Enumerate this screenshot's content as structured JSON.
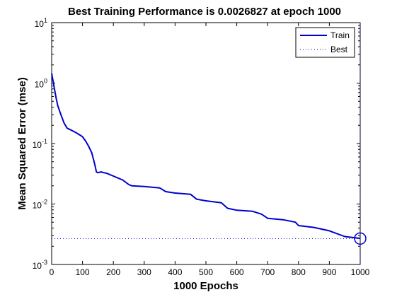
{
  "chart_data": {
    "type": "line",
    "title": "Best Training Performance is 0.0026827 at epoch 1000",
    "xlabel": "1000 Epochs",
    "ylabel": "Mean Squared Error  (mse)",
    "xlim": [
      0,
      1000
    ],
    "ylim": [
      0.001,
      10
    ],
    "yscale": "log",
    "grid": false,
    "legend_position": "top-right",
    "x_ticks": [
      0,
      100,
      200,
      300,
      400,
      500,
      600,
      700,
      800,
      900,
      1000
    ],
    "y_ticks": [
      {
        "value": 10,
        "base": "10",
        "exp": "1"
      },
      {
        "value": 1,
        "base": "10",
        "exp": "0"
      },
      {
        "value": 0.1,
        "base": "10",
        "exp": "-1"
      },
      {
        "value": 0.01,
        "base": "10",
        "exp": "-2"
      },
      {
        "value": 0.001,
        "base": "10",
        "exp": "-3"
      }
    ],
    "series": [
      {
        "name": "Train",
        "color": "#0000cc",
        "style": "solid",
        "x": [
          0,
          5,
          10,
          15,
          20,
          30,
          40,
          50,
          60,
          70,
          80,
          90,
          100,
          110,
          120,
          130,
          140,
          145,
          150,
          160,
          180,
          200,
          230,
          250,
          260,
          300,
          350,
          370,
          400,
          450,
          470,
          500,
          550,
          570,
          600,
          650,
          680,
          700,
          750,
          790,
          800,
          850,
          900,
          950,
          1000
        ],
        "y": [
          1.45,
          1.05,
          0.75,
          0.55,
          0.42,
          0.3,
          0.22,
          0.18,
          0.17,
          0.16,
          0.15,
          0.14,
          0.13,
          0.11,
          0.09,
          0.07,
          0.045,
          0.034,
          0.033,
          0.034,
          0.032,
          0.029,
          0.025,
          0.021,
          0.02,
          0.0195,
          0.0185,
          0.016,
          0.0152,
          0.0145,
          0.012,
          0.0113,
          0.0105,
          0.0085,
          0.0079,
          0.0076,
          0.0068,
          0.0058,
          0.0055,
          0.005,
          0.0044,
          0.0041,
          0.0036,
          0.0029,
          0.0027
        ]
      },
      {
        "name": "Best",
        "color": "#0000cc",
        "style": "dotted",
        "best_x": 1000,
        "best_y": 0.0026827
      }
    ]
  }
}
